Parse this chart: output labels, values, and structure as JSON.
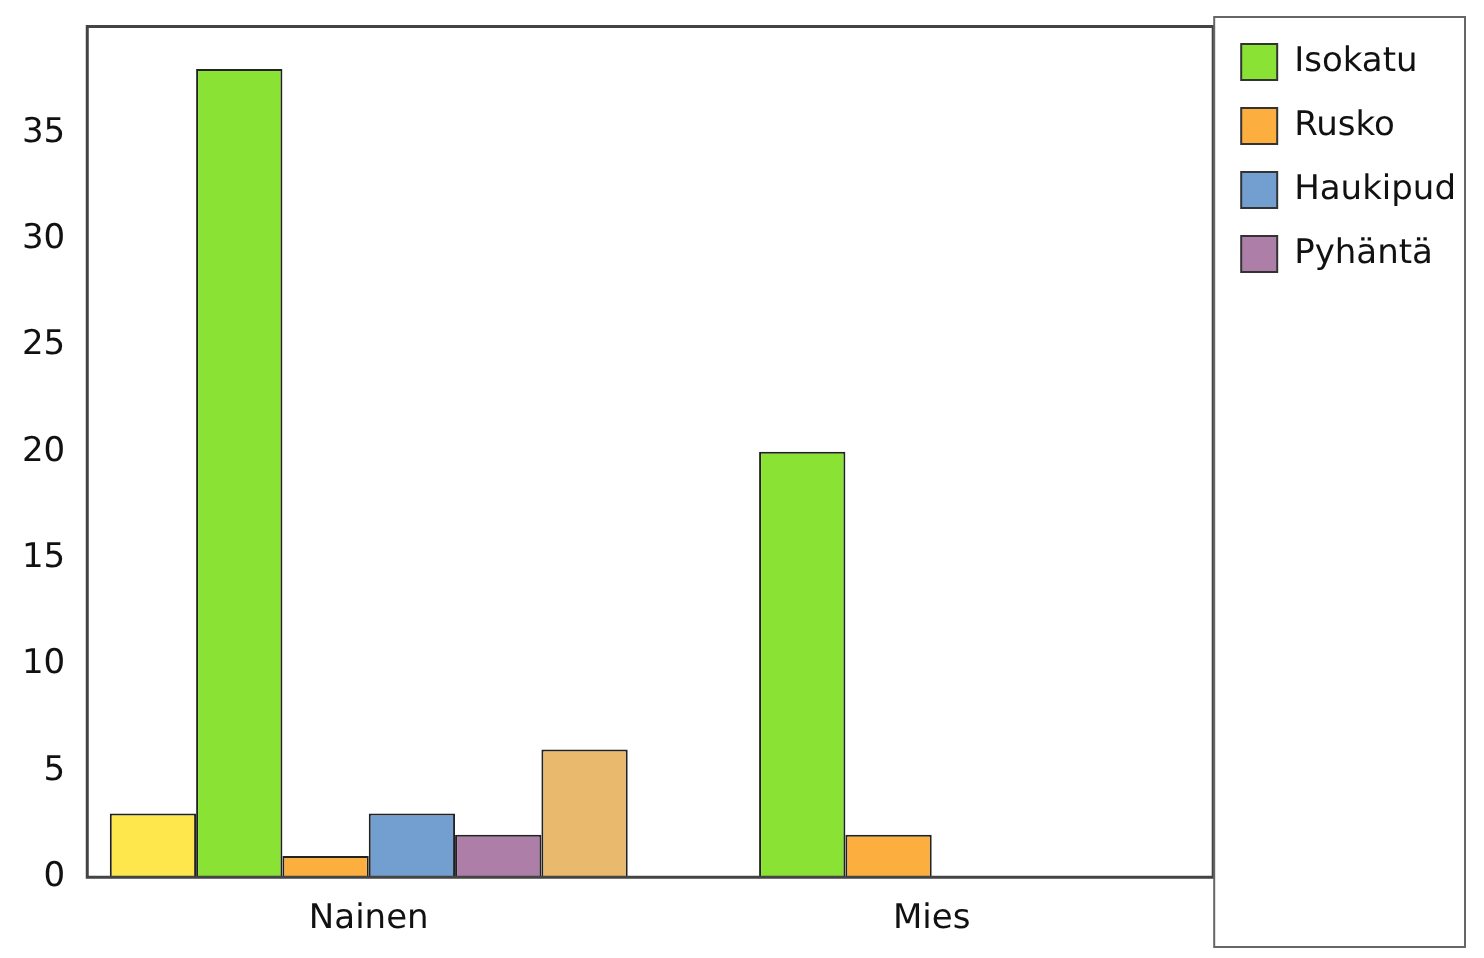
{
  "chart_data": {
    "type": "bar",
    "categories": [
      "Nainen",
      "Mies"
    ],
    "series": [
      {
        "color": "#fde74c",
        "values": [
          3,
          null
        ]
      },
      {
        "name": "Isokatu",
        "color": "#8ae234",
        "values": [
          38,
          20
        ]
      },
      {
        "name": "Rusko",
        "color": "#fcaf3e",
        "values": [
          1,
          2
        ]
      },
      {
        "name": "Haukipud",
        "color": "#729fcf",
        "values": [
          3,
          null
        ]
      },
      {
        "name": "Pyhäntä",
        "color": "#ad7fa8",
        "values": [
          2,
          null
        ]
      },
      {
        "color": "#e9b96e",
        "values": [
          6,
          null
        ]
      }
    ],
    "ylim": [
      0,
      40
    ],
    "yticks": [
      0,
      5,
      10,
      15,
      20,
      25,
      30,
      35
    ],
    "grid": false,
    "legend": "top right"
  }
}
